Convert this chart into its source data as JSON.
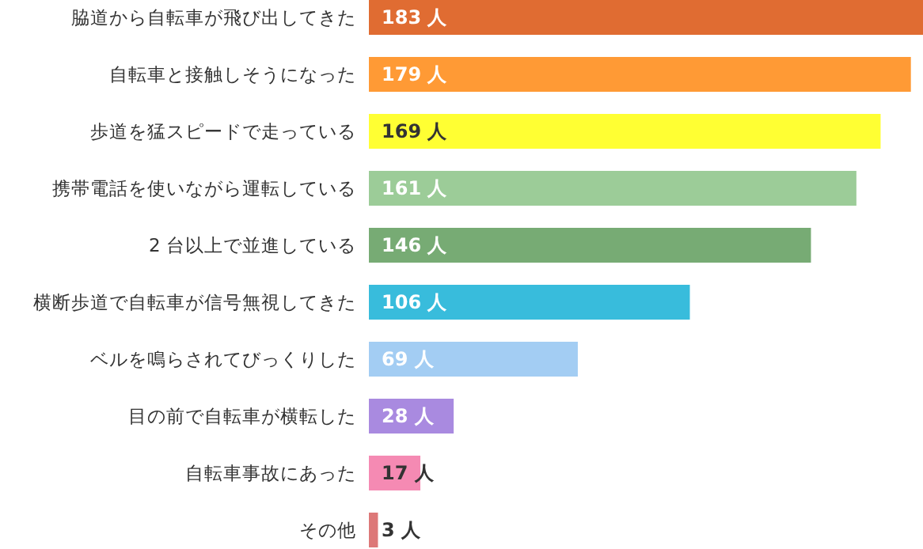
{
  "chart_data": {
    "type": "bar",
    "orientation": "horizontal",
    "categories": [
      "脇道から自転車が飛び出してきた",
      "自転車と接触しそうになった",
      "歩道を猛スピードで走っている",
      "携帯電話を使いながら運転している",
      "2 台以上で並進している",
      "横断歩道で自転車が信号無視してきた",
      "ベルを鳴らされてびっくりした",
      "目の前で自転車が横転した",
      "自転車事故にあった",
      "その他"
    ],
    "values": [
      183,
      179,
      169,
      161,
      146,
      106,
      69,
      28,
      17,
      3
    ],
    "value_labels": [
      "183 人",
      "179 人",
      "169 人",
      "161 人",
      "146 人",
      "106 人",
      "69 人",
      "28 人",
      "17 人",
      "3 人"
    ],
    "colors": [
      "#e06c32",
      "#ff9a35",
      "#ffff33",
      "#9ccc98",
      "#77ab74",
      "#38bcdc",
      "#a3cdf3",
      "#a98ae0",
      "#f58ab3",
      "#dd7878"
    ]
  }
}
